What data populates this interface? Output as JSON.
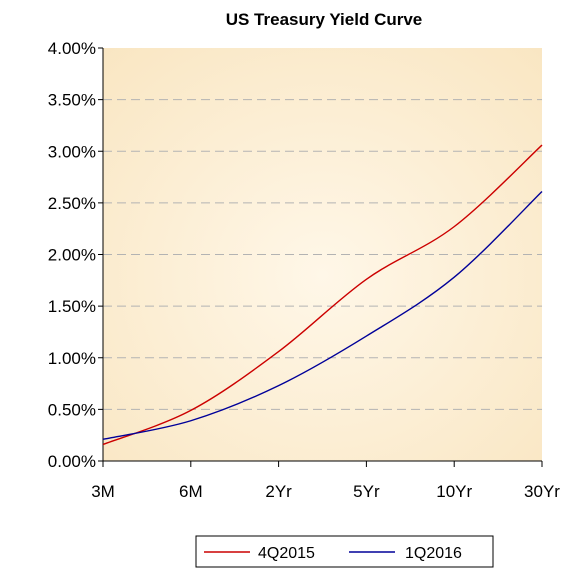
{
  "chart_data": {
    "type": "line",
    "title": "US Treasury Yield Curve",
    "xlabel": "",
    "ylabel": "",
    "categories": [
      "3M",
      "6M",
      "2Yr",
      "5Yr",
      "10Yr",
      "30Yr"
    ],
    "ylim": [
      0,
      4.0
    ],
    "y_ticks": [
      "0.00%",
      "0.50%",
      "1.00%",
      "1.50%",
      "2.00%",
      "2.50%",
      "3.00%",
      "3.50%",
      "4.00%"
    ],
    "grid": true,
    "legend_position": "bottom",
    "plot_background": "#FDF0D5",
    "series": [
      {
        "name": "4Q2015",
        "color": "#CC0000",
        "values": [
          0.16,
          0.49,
          1.06,
          1.76,
          2.27,
          3.06
        ]
      },
      {
        "name": "1Q2016",
        "color": "#000099",
        "values": [
          0.21,
          0.39,
          0.73,
          1.21,
          1.78,
          2.61
        ]
      }
    ]
  }
}
